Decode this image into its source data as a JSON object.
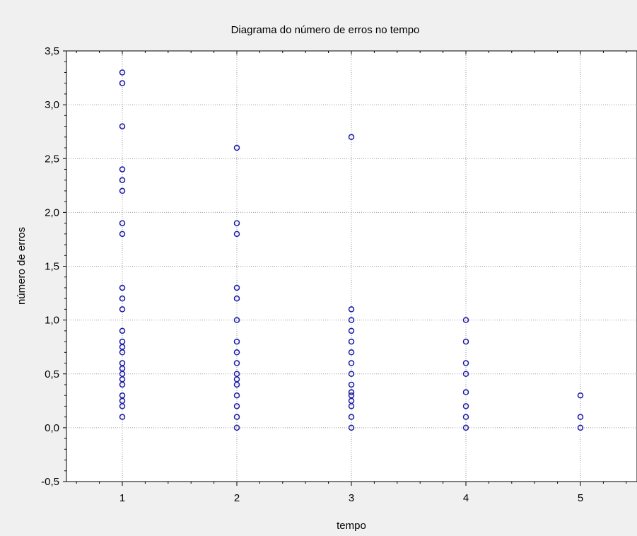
{
  "chart_data": {
    "type": "scatter",
    "title": "Diagrama do número de erros no tempo",
    "xlabel": "tempo",
    "ylabel": "número de erros",
    "xlim": [
      0.5,
      5.4
    ],
    "ylim": [
      -0.5,
      3.5
    ],
    "x_ticks": [
      1,
      2,
      3,
      4,
      5
    ],
    "x_tick_labels": [
      "1",
      "2",
      "3",
      "4",
      "5"
    ],
    "y_ticks": [
      -0.5,
      0.0,
      0.5,
      1.0,
      1.5,
      2.0,
      2.5,
      3.0,
      3.5
    ],
    "y_tick_labels": [
      "-0,5",
      "0,0",
      "0,5",
      "1,0",
      "1,5",
      "2,0",
      "2,5",
      "3,0",
      "3,5"
    ],
    "grid": true,
    "marker": "open-circle",
    "marker_color": "#1a1aa6",
    "series": [
      {
        "points": [
          [
            1,
            3.3
          ],
          [
            1,
            3.2
          ],
          [
            1,
            2.8
          ],
          [
            1,
            2.4
          ],
          [
            1,
            2.3
          ],
          [
            1,
            2.2
          ],
          [
            1,
            1.9
          ],
          [
            1,
            1.8
          ],
          [
            1,
            1.3
          ],
          [
            1,
            1.2
          ],
          [
            1,
            1.1
          ],
          [
            1,
            0.9
          ],
          [
            1,
            0.8
          ],
          [
            1,
            0.75
          ],
          [
            1,
            0.7
          ],
          [
            1,
            0.6
          ],
          [
            1,
            0.55
          ],
          [
            1,
            0.5
          ],
          [
            1,
            0.45
          ],
          [
            1,
            0.4
          ],
          [
            1,
            0.3
          ],
          [
            1,
            0.25
          ],
          [
            1,
            0.2
          ],
          [
            1,
            0.1
          ],
          [
            2,
            2.6
          ],
          [
            2,
            1.9
          ],
          [
            2,
            1.8
          ],
          [
            2,
            1.3
          ],
          [
            2,
            1.2
          ],
          [
            2,
            1.0
          ],
          [
            2,
            0.8
          ],
          [
            2,
            0.7
          ],
          [
            2,
            0.6
          ],
          [
            2,
            0.5
          ],
          [
            2,
            0.45
          ],
          [
            2,
            0.4
          ],
          [
            2,
            0.3
          ],
          [
            2,
            0.2
          ],
          [
            2,
            0.1
          ],
          [
            2,
            0.0
          ],
          [
            3,
            2.7
          ],
          [
            3,
            1.1
          ],
          [
            3,
            1.0
          ],
          [
            3,
            0.9
          ],
          [
            3,
            0.8
          ],
          [
            3,
            0.7
          ],
          [
            3,
            0.6
          ],
          [
            3,
            0.5
          ],
          [
            3,
            0.4
          ],
          [
            3,
            0.33
          ],
          [
            3,
            0.3
          ],
          [
            3,
            0.25
          ],
          [
            3,
            0.2
          ],
          [
            3,
            0.1
          ],
          [
            3,
            0.0
          ],
          [
            4,
            1.0
          ],
          [
            4,
            0.8
          ],
          [
            4,
            0.6
          ],
          [
            4,
            0.5
          ],
          [
            4,
            0.33
          ],
          [
            4,
            0.2
          ],
          [
            4,
            0.1
          ],
          [
            4,
            0.0
          ],
          [
            5,
            0.3
          ],
          [
            5,
            0.1
          ],
          [
            5,
            0.0
          ]
        ]
      }
    ]
  }
}
